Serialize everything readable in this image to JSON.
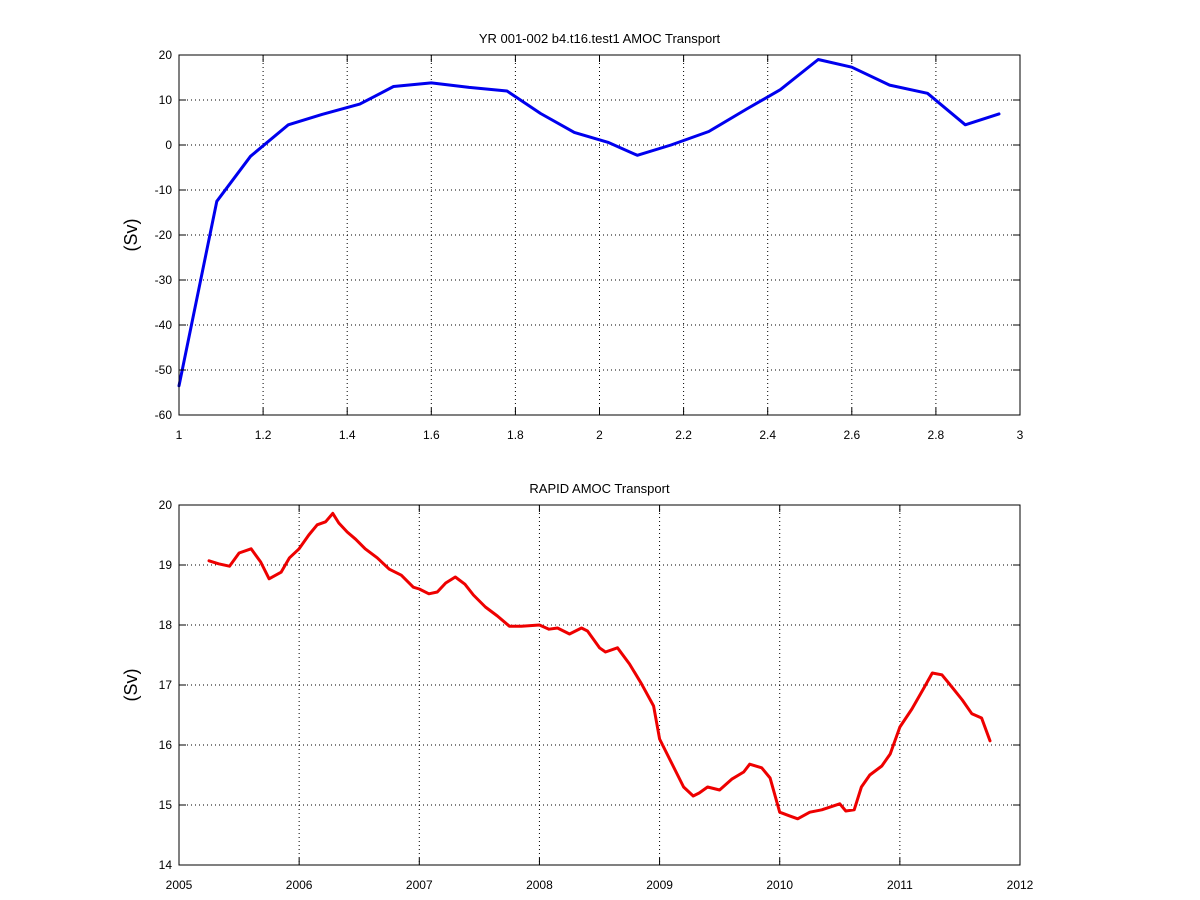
{
  "figure": {
    "background": "#ffffff",
    "axes_color": "#000000",
    "grid_color": "#000000"
  },
  "chart_data": [
    {
      "type": "line",
      "title": "YR 001-002 b4.t16.test1 AMOC Transport",
      "xlabel": "",
      "ylabel": "(Sv)",
      "xlim": [
        1,
        3
      ],
      "ylim": [
        -60,
        20
      ],
      "grid": true,
      "xticks": [
        1,
        1.2,
        1.4,
        1.6,
        1.8,
        2,
        2.2,
        2.4,
        2.6,
        2.8,
        3
      ],
      "xtick_labels": [
        "1",
        "1.2",
        "1.4",
        "1.6",
        "1.8",
        "2",
        "2.2",
        "2.4",
        "2.6",
        "2.8",
        "3"
      ],
      "yticks": [
        -60,
        -50,
        -40,
        -30,
        -20,
        -10,
        0,
        10,
        20
      ],
      "ytick_labels": [
        "-60",
        "-50",
        "-40",
        "-30",
        "-20",
        "-10",
        "0",
        "10",
        "20"
      ],
      "series": [
        {
          "color": "#0000ee",
          "x": [
            1.0,
            1.09,
            1.17,
            1.26,
            1.34,
            1.43,
            1.51,
            1.6,
            1.69,
            1.78,
            1.86,
            1.94,
            2.02,
            2.09,
            2.17,
            2.26,
            2.35,
            2.43,
            2.52,
            2.6,
            2.69,
            2.78,
            2.87,
            2.95
          ],
          "y": [
            -53.5,
            -12.5,
            -2.5,
            4.5,
            6.8,
            9.1,
            13.0,
            13.8,
            12.8,
            12.0,
            7.0,
            2.8,
            0.6,
            -2.3,
            0.0,
            3.0,
            8.0,
            12.3,
            19.0,
            17.3,
            13.3,
            11.5,
            4.5,
            6.9
          ]
        }
      ]
    },
    {
      "type": "line",
      "title": "RAPID AMOC Transport",
      "xlabel": "",
      "ylabel": "(Sv)",
      "xlim": [
        2005,
        2012
      ],
      "ylim": [
        14,
        20
      ],
      "grid": true,
      "xticks": [
        2005,
        2006,
        2007,
        2008,
        2009,
        2010,
        2011,
        2012
      ],
      "xtick_labels": [
        "2005",
        "2006",
        "2007",
        "2008",
        "2009",
        "2010",
        "2011",
        "2012"
      ],
      "yticks": [
        14,
        15,
        16,
        17,
        18,
        19,
        20
      ],
      "ytick_labels": [
        "14",
        "15",
        "16",
        "17",
        "18",
        "19",
        "20"
      ],
      "series": [
        {
          "color": "#ee0000",
          "x": [
            2005.25,
            2005.33,
            2005.42,
            2005.5,
            2005.6,
            2005.68,
            2005.75,
            2005.85,
            2005.92,
            2006.0,
            2006.08,
            2006.15,
            2006.22,
            2006.28,
            2006.33,
            2006.4,
            2006.47,
            2006.55,
            2006.65,
            2006.75,
            2006.85,
            2006.95,
            2007.0,
            2007.08,
            2007.15,
            2007.22,
            2007.3,
            2007.38,
            2007.45,
            2007.55,
            2007.65,
            2007.75,
            2007.85,
            2008.0,
            2008.08,
            2008.15,
            2008.25,
            2008.35,
            2008.4,
            2008.5,
            2008.55,
            2008.65,
            2008.75,
            2008.85,
            2008.95,
            2009.0,
            2009.1,
            2009.2,
            2009.28,
            2009.33,
            2009.4,
            2009.5,
            2009.6,
            2009.7,
            2009.75,
            2009.85,
            2009.92,
            2010.0,
            2010.08,
            2010.15,
            2010.25,
            2010.35,
            2010.5,
            2010.55,
            2010.62,
            2010.68,
            2010.75,
            2010.85,
            2010.92,
            2011.0,
            2011.1,
            2011.2,
            2011.27,
            2011.35,
            2011.42,
            2011.52,
            2011.6,
            2011.68,
            2011.75
          ],
          "y": [
            19.07,
            19.02,
            18.98,
            19.2,
            19.27,
            19.05,
            18.77,
            18.88,
            19.12,
            19.27,
            19.5,
            19.67,
            19.72,
            19.86,
            19.7,
            19.55,
            19.43,
            19.27,
            19.12,
            18.93,
            18.83,
            18.63,
            18.6,
            18.52,
            18.55,
            18.7,
            18.8,
            18.68,
            18.5,
            18.3,
            18.15,
            17.98,
            17.98,
            18.0,
            17.93,
            17.95,
            17.85,
            17.95,
            17.9,
            17.62,
            17.55,
            17.62,
            17.35,
            17.02,
            16.65,
            16.1,
            15.7,
            15.3,
            15.15,
            15.2,
            15.3,
            15.25,
            15.43,
            15.55,
            15.68,
            15.62,
            15.45,
            14.88,
            14.82,
            14.77,
            14.88,
            14.92,
            15.02,
            14.9,
            14.92,
            15.3,
            15.5,
            15.65,
            15.85,
            16.3,
            16.6,
            16.95,
            17.2,
            17.17,
            17.0,
            16.75,
            16.52,
            16.45,
            16.07
          ]
        }
      ]
    }
  ]
}
